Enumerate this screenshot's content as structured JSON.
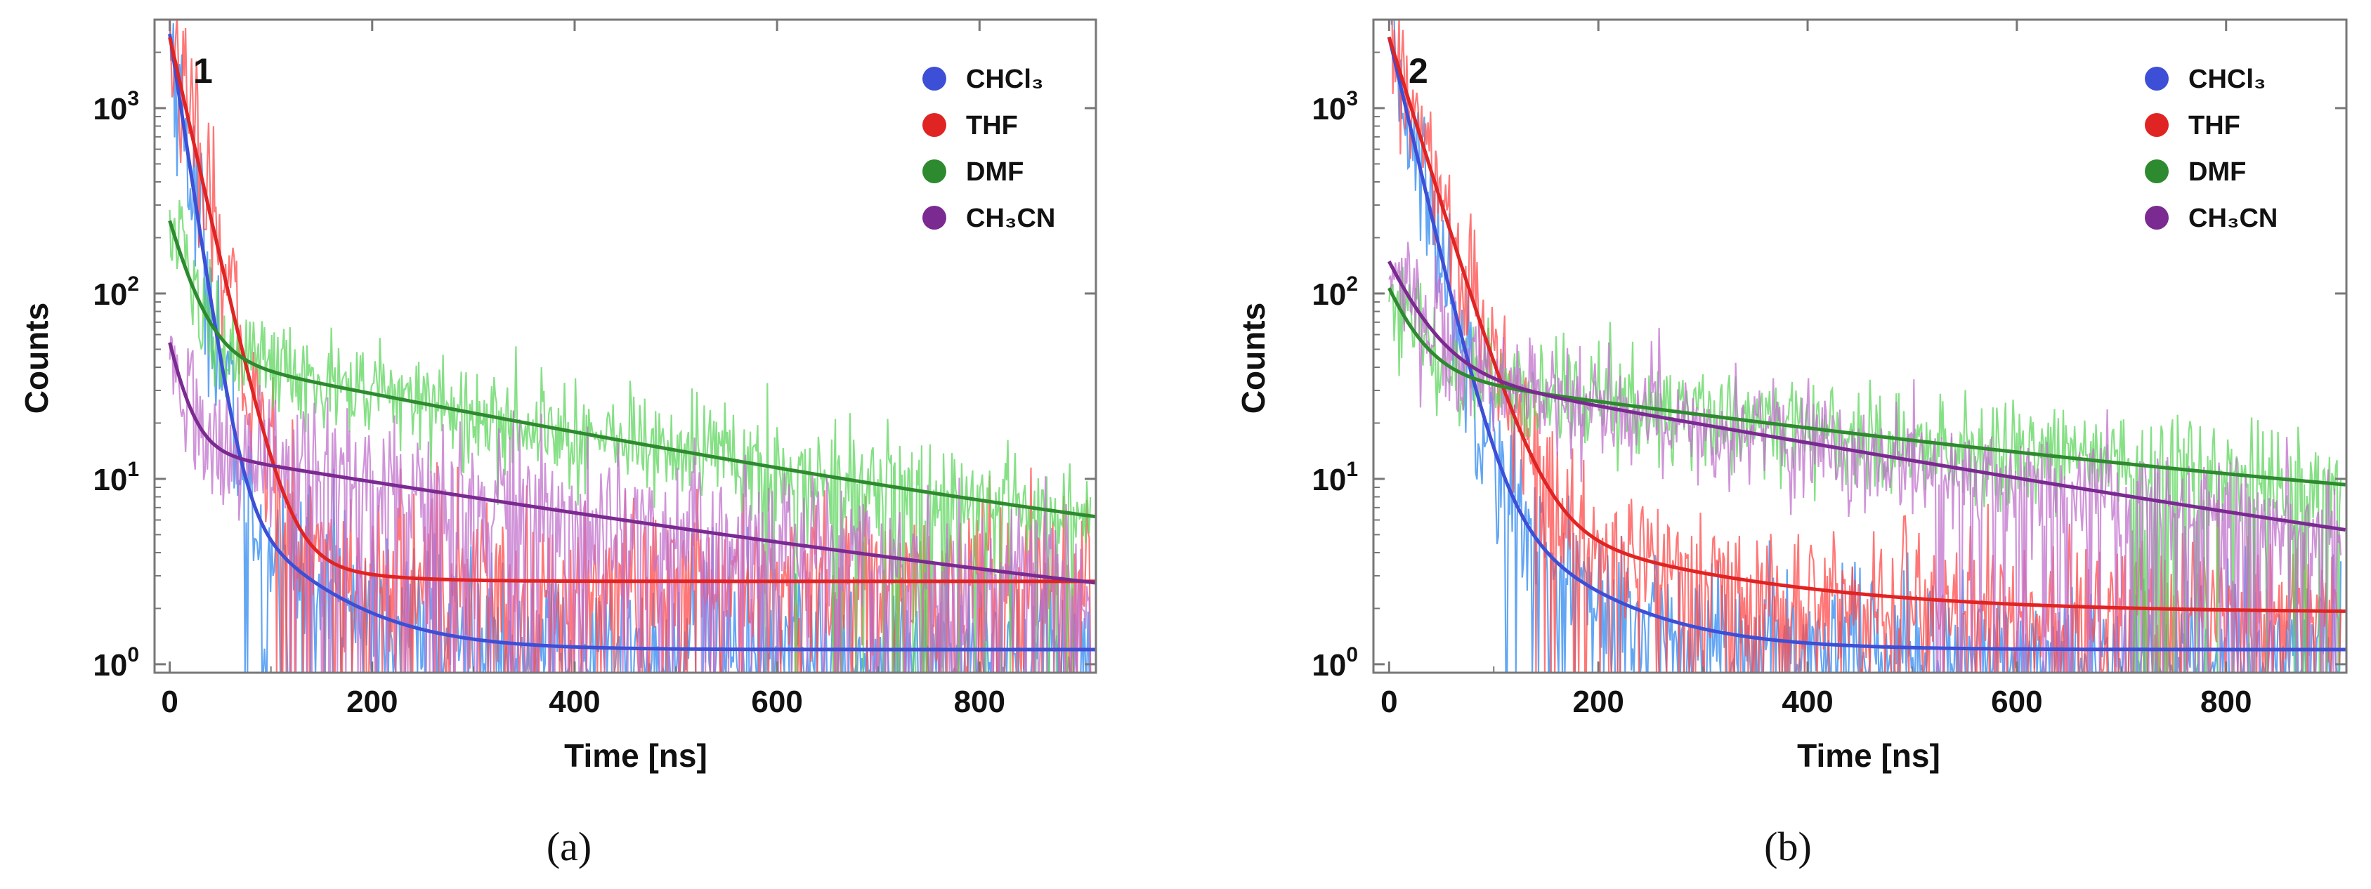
{
  "chart_data": [
    {
      "type": "line",
      "panel_label": "(a)",
      "panel_number": "1",
      "xlabel": "Time [ns]",
      "ylabel": "Counts",
      "xlim": [
        -15,
        915
      ],
      "ylim": [
        0.9,
        3000
      ],
      "yscale": "log",
      "x_ticks": [
        0,
        200,
        400,
        600,
        800
      ],
      "x_tick_labels": [
        "0",
        "200",
        "400",
        "600",
        "800"
      ],
      "y_ticks": [
        1,
        10,
        100,
        1000
      ],
      "y_tick_labels": [
        {
          "base": "10",
          "exp": "0"
        },
        {
          "base": "10",
          "exp": "1"
        },
        {
          "base": "10",
          "exp": "2"
        },
        {
          "base": "10",
          "exp": "3"
        }
      ],
      "legend_position": "top-right",
      "series": [
        {
          "name": "CHCl₃",
          "color": "#3d4fd6",
          "noise_color": "#2f88f0",
          "fit": {
            "terms": [
              [
                2500,
                12
              ],
              [
                12,
                70
              ]
            ],
            "offset": 1.2
          },
          "noise_sigma": 0.55
        },
        {
          "name": "THF",
          "color": "#e02424",
          "noise_color": "#ff4a4a",
          "fit": {
            "terms": [
              [
                2400,
                18
              ],
              [
                6,
                60
              ]
            ],
            "offset": 2.8
          },
          "noise_sigma": 0.5
        },
        {
          "name": "DMF",
          "color": "#2e8a2e",
          "noise_color": "#5ed65e",
          "fit": {
            "terms": [
              [
                200,
                20
              ],
              [
                45,
                380
              ]
            ],
            "offset": 2.2
          },
          "noise_sigma": 0.35
        },
        {
          "name": "CH₃CN",
          "color": "#7a2a90",
          "noise_color": "#c070cc",
          "fit": {
            "terms": [
              [
                40,
                15
              ],
              [
                13.5,
                460
              ]
            ],
            "offset": 0.9
          },
          "noise_sigma": 0.45
        }
      ]
    },
    {
      "type": "line",
      "panel_label": "(b)",
      "panel_number": "2",
      "xlabel": "Time [ns]",
      "ylabel": "Counts",
      "xlim": [
        -15,
        915
      ],
      "ylim": [
        0.9,
        3000
      ],
      "yscale": "log",
      "x_ticks": [
        0,
        200,
        400,
        600,
        800
      ],
      "x_tick_labels": [
        "0",
        "200",
        "400",
        "600",
        "800"
      ],
      "y_ticks": [
        1,
        10,
        100,
        1000
      ],
      "y_tick_labels": [
        {
          "base": "10",
          "exp": "0"
        },
        {
          "base": "10",
          "exp": "1"
        },
        {
          "base": "10",
          "exp": "2"
        },
        {
          "base": "10",
          "exp": "3"
        }
      ],
      "legend_position": "top-right",
      "series": [
        {
          "name": "CHCl₃",
          "color": "#3d4fd6",
          "noise_color": "#2f88f0",
          "fit": {
            "terms": [
              [
                2400,
                18
              ],
              [
                15,
                80
              ]
            ],
            "offset": 1.2
          },
          "noise_sigma": 0.5
        },
        {
          "name": "THF",
          "color": "#e02424",
          "noise_color": "#ff4a4a",
          "fit": {
            "terms": [
              [
                2400,
                24
              ],
              [
                7,
                170
              ]
            ],
            "offset": 1.9
          },
          "noise_sigma": 0.45
        },
        {
          "name": "DMF",
          "color": "#2e8a2e",
          "noise_color": "#5ed65e",
          "fit": {
            "terms": [
              [
                70,
                25
              ],
              [
                33,
                500
              ]
            ],
            "offset": 4.0
          },
          "noise_sigma": 0.35
        },
        {
          "name": "CH₃CN",
          "color": "#7a2a90",
          "noise_color": "#c070cc",
          "fit": {
            "terms": [
              [
                110,
                30
              ],
              [
                38,
                420
              ]
            ],
            "offset": 1.0
          },
          "noise_sigma": 0.35
        }
      ]
    }
  ]
}
